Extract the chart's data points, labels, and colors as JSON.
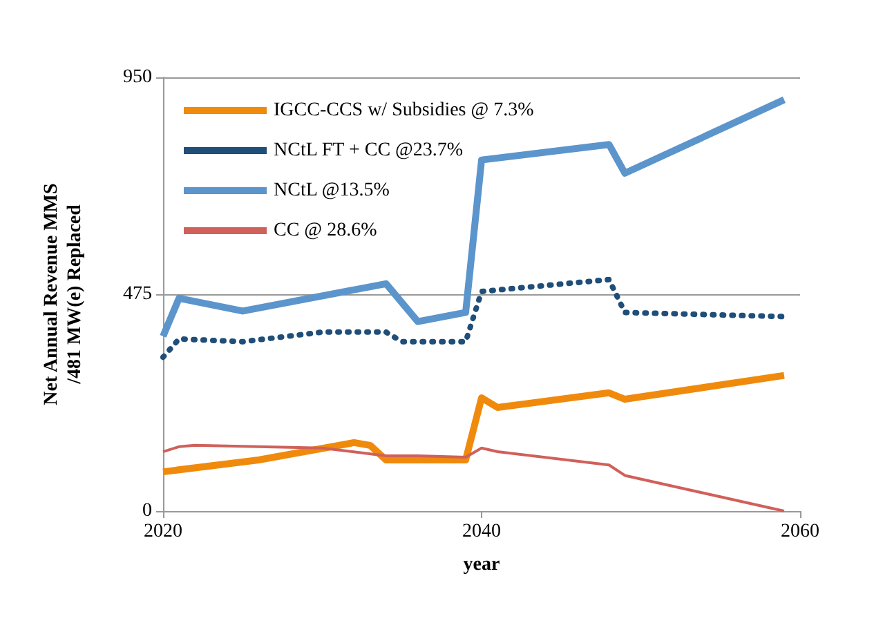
{
  "chart_data": {
    "type": "line",
    "xlabel": "year",
    "ylabel": "Net Annual Revenue MMS\n/481 MW(e) Replaced",
    "xlim": [
      2020,
      2060
    ],
    "xticks": [
      2020,
      2040,
      2060
    ],
    "ylim": [
      0,
      950
    ],
    "yticks": [
      0,
      475,
      950
    ],
    "grid": "y",
    "legend": "top left",
    "marker": "none",
    "series": [
      {
        "name": "IGCC-CCS w/ Subsidies @ 7.3%",
        "color": "#f08a0c",
        "x": [
          2020,
          2026,
          2032,
          2033,
          2034,
          2039,
          2040,
          2041,
          2048,
          2049,
          2059
        ],
        "values": [
          86,
          112,
          150,
          144,
          112,
          112,
          248,
          227,
          259,
          245,
          297
        ]
      },
      {
        "name": "NCtL FT + CC @23.7%",
        "color": "#1f4e79",
        "line_style": "dotted",
        "x": [
          2020,
          2021,
          2025,
          2030,
          2034,
          2035,
          2039,
          2040,
          2048,
          2049,
          2059
        ],
        "values": [
          337,
          377,
          371,
          392,
          392,
          371,
          371,
          481,
          507,
          435,
          426
        ]
      },
      {
        "name": "NCtL @13.5%",
        "color": "#5b95cc",
        "x": [
          2020,
          2021,
          2025,
          2034,
          2036,
          2039,
          2040,
          2048,
          2049,
          2059
        ],
        "values": [
          383,
          466,
          438,
          498,
          415,
          435,
          769,
          803,
          740,
          901
        ]
      },
      {
        "name": "CC @ 28.6%",
        "color": "#d0605a",
        "x": [
          2020,
          2021,
          2022,
          2030,
          2034,
          2036,
          2039,
          2040,
          2041,
          2048,
          2049,
          2059
        ],
        "values": [
          130,
          141,
          144,
          138,
          121,
          121,
          118,
          138,
          130,
          101,
          78,
          0
        ]
      }
    ]
  }
}
